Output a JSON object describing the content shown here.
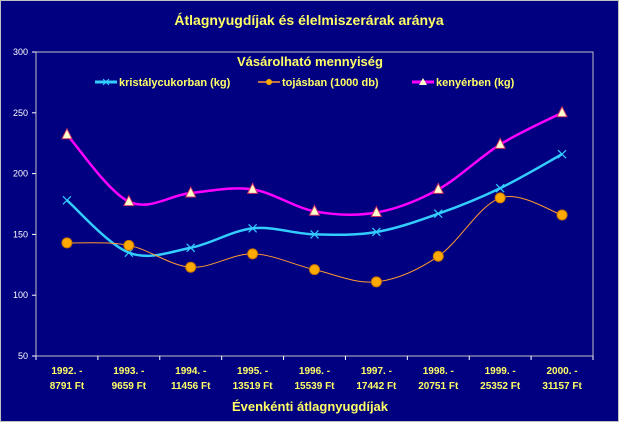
{
  "chart_data": {
    "type": "line",
    "title": "Átlagnyugdíjak és élelmiszerárak aránya",
    "legend_title": "Vásárolható mennyiség",
    "legend_placement": "top",
    "xlabel": "Évenkénti átlagnyugdíjak",
    "ylabel": "",
    "ylim": [
      50,
      300
    ],
    "yticks": [
      50,
      100,
      150,
      200,
      250,
      300
    ],
    "grid": false,
    "categories": [
      [
        "1992. -",
        "8791 Ft"
      ],
      [
        "1993. -",
        "9659 Ft"
      ],
      [
        "1994. -",
        "11456 Ft"
      ],
      [
        "1995. -",
        "13519 Ft"
      ],
      [
        "1996. -",
        "15539 Ft"
      ],
      [
        "1997. -",
        "17442 Ft"
      ],
      [
        "1998. -",
        "20751 Ft"
      ],
      [
        "1999. -",
        "25352 Ft"
      ],
      [
        "2000. -",
        "31157 Ft"
      ]
    ],
    "series": [
      {
        "name": "kristálycukorban (kg)",
        "color": "#33ccff",
        "marker": "x",
        "values": [
          178,
          135,
          139,
          155,
          150,
          152,
          167,
          188,
          216
        ]
      },
      {
        "name": "tojásban (1000 db)",
        "color": "#ff9933",
        "marker": "circle",
        "values": [
          143,
          141,
          123,
          134,
          121,
          111,
          132,
          180,
          166
        ]
      },
      {
        "name": "kenyérben (kg)",
        "color": "#ff00ff",
        "marker": "triangle",
        "values": [
          232,
          177,
          184,
          187,
          169,
          168,
          187,
          224,
          250
        ]
      }
    ]
  }
}
